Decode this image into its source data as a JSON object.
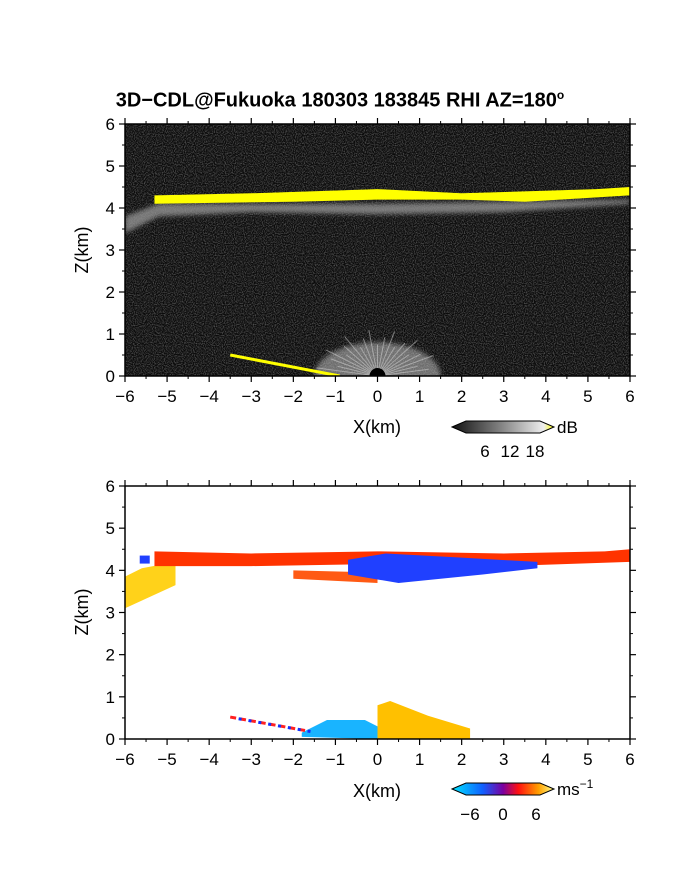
{
  "figure": {
    "title": "3D−CDL@Fukuoka 180303 183845 RHI AZ=180",
    "title_sup": "o"
  },
  "chart_data": [
    {
      "type": "heatmap",
      "panel": "reflectivity",
      "xlabel": "X(km)",
      "ylabel": "Z(km)",
      "xlim": [
        -6,
        6
      ],
      "ylim": [
        0,
        6
      ],
      "xticks": [
        "−6",
        "−5",
        "−4",
        "−3",
        "−2",
        "−1",
        "0",
        "1",
        "2",
        "3",
        "4",
        "5",
        "6"
      ],
      "yticks": [
        "0",
        "1",
        "2",
        "3",
        "4",
        "5",
        "6"
      ],
      "colorbar": {
        "unit": "dB",
        "ticks": [
          "6",
          "12",
          "18"
        ],
        "range": [
          0,
          20
        ]
      },
      "layers": [
        {
          "feature": "cloud-top bright band",
          "x": [
            -5.3,
            6
          ],
          "z_top": [
            4.35,
            4.45
          ],
          "z_bottom": [
            4.1,
            4.25
          ],
          "value_db": 20,
          "color": "#ffff00"
        },
        {
          "feature": "diffuse layer below band",
          "x": [
            -6,
            6
          ],
          "z_top": [
            4.1,
            4.2
          ],
          "z_bottom": [
            3.4,
            3.9
          ],
          "value_db": 10,
          "color": "#9a9a9a"
        },
        {
          "feature": "near-surface clutter",
          "x": [
            -1.5,
            1.5
          ],
          "z_top": [
            0,
            0.8
          ],
          "value_db": 12,
          "color": "#bdbdbd"
        },
        {
          "feature": "ground return line",
          "x": [
            -3.5,
            -0.9
          ],
          "z": [
            0.5,
            0.0
          ],
          "value_db": 20,
          "color": "#ffff00"
        }
      ]
    },
    {
      "type": "heatmap",
      "panel": "doppler velocity",
      "xlabel": "X(km)",
      "ylabel": "Z(km)",
      "xlim": [
        -6,
        6
      ],
      "ylim": [
        0,
        6
      ],
      "xticks": [
        "−6",
        "−5",
        "−4",
        "−3",
        "−2",
        "−1",
        "0",
        "1",
        "2",
        "3",
        "4",
        "5",
        "6"
      ],
      "yticks": [
        "0",
        "1",
        "2",
        "3",
        "4",
        "5",
        "6"
      ],
      "colorbar": {
        "unit": "ms",
        "unit_sup": "−1",
        "ticks": [
          "−6",
          "0",
          "6"
        ],
        "range": [
          -8,
          8
        ]
      },
      "layers": [
        {
          "feature": "cloud layer (receding)",
          "x": [
            -5.3,
            6
          ],
          "z": [
            4.1,
            4.45
          ],
          "velocity_ms": 2,
          "color": "#ff3300"
        },
        {
          "feature": "cloud layer (approaching patch)",
          "x": [
            -0.7,
            3.8
          ],
          "z": [
            3.7,
            4.4
          ],
          "velocity_ms": -3,
          "color": "#2040ff"
        },
        {
          "feature": "tail at left edge",
          "x": [
            -6,
            -4.8
          ],
          "z": [
            3.1,
            4.2
          ],
          "velocity_ms": 5,
          "color": "#ffd21a"
        },
        {
          "feature": "near-surface approaching",
          "x": [
            -1.8,
            0
          ],
          "z": [
            0,
            0.45
          ],
          "velocity_ms": -5,
          "color": "#19b4ff"
        },
        {
          "feature": "near-surface receding",
          "x": [
            0,
            2.2
          ],
          "z": [
            0,
            0.9
          ],
          "velocity_ms": 5,
          "color": "#ffc000"
        }
      ]
    }
  ]
}
